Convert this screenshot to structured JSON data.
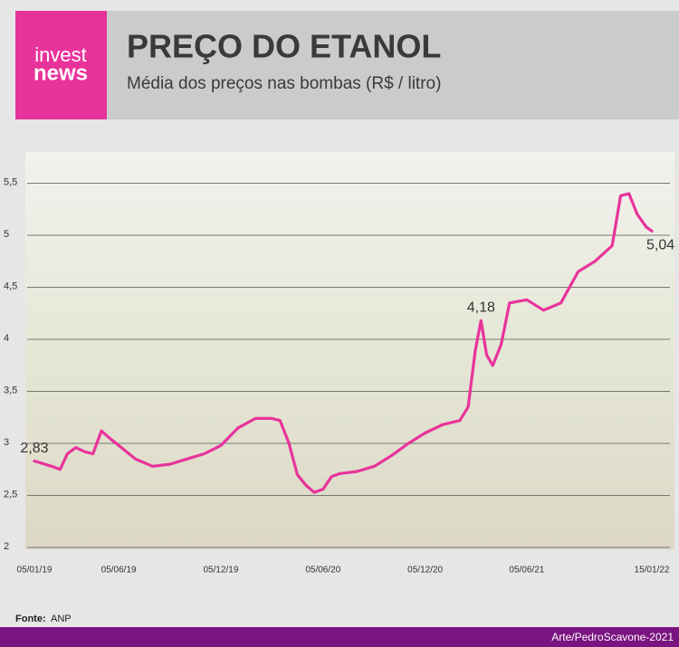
{
  "logo_top": "invest",
  "logo_bottom": "news",
  "chart_data": {
    "type": "line",
    "title": "PREÇO DO ETANOL",
    "subtitle": "Média dos preços nas bombas (R$ / litro)",
    "source_label": "Fonte:",
    "source": "ANP",
    "credit": "Arte/PedroScavone-2021",
    "x": [
      "05/01/19",
      "05/02/19",
      "20/02/19",
      "05/03/19",
      "20/03/19",
      "05/04/19",
      "20/04/19",
      "05/05/19",
      "20/05/19",
      "05/06/19",
      "05/07/19",
      "05/08/19",
      "05/09/19",
      "05/10/19",
      "05/11/19",
      "05/12/19",
      "05/01/20",
      "05/02/20",
      "05/03/20",
      "20/03/20",
      "05/04/20",
      "20/04/20",
      "05/05/20",
      "20/05/20",
      "05/06/20",
      "20/06/20",
      "05/07/20",
      "05/08/20",
      "05/09/20",
      "05/10/20",
      "05/11/20",
      "05/12/20",
      "05/01/21",
      "05/02/21",
      "20/02/21",
      "05/03/21",
      "15/03/21",
      "25/03/21",
      "05/04/21",
      "20/04/21",
      "05/05/21",
      "05/06/21",
      "05/07/21",
      "05/08/21",
      "05/09/21",
      "05/10/21",
      "05/11/21",
      "20/11/21",
      "05/12/21",
      "20/12/21",
      "05/01/22",
      "15/01/22"
    ],
    "series": [
      {
        "color": "#e8339b",
        "values": [
          2.83,
          2.78,
          2.75,
          2.9,
          2.96,
          2.92,
          2.9,
          3.12,
          3.05,
          2.98,
          2.85,
          2.78,
          2.8,
          2.85,
          2.9,
          2.98,
          3.15,
          3.24,
          3.24,
          3.22,
          3.0,
          2.7,
          2.6,
          2.53,
          2.56,
          2.68,
          2.71,
          2.73,
          2.78,
          2.88,
          3.0,
          3.1,
          3.18,
          3.22,
          3.35,
          3.9,
          4.18,
          3.85,
          3.75,
          3.95,
          4.35,
          4.38,
          4.28,
          4.35,
          4.65,
          4.75,
          4.9,
          5.38,
          5.4,
          5.2,
          5.08,
          5.04
        ],
        "value_labels": [
          "2,83",
          null,
          null,
          null,
          null,
          null,
          null,
          null,
          null,
          null,
          null,
          null,
          null,
          null,
          null,
          null,
          null,
          null,
          null,
          null,
          null,
          null,
          null,
          null,
          null,
          null,
          null,
          null,
          null,
          null,
          null,
          null,
          null,
          null,
          null,
          null,
          "4,18",
          null,
          null,
          null,
          null,
          null,
          null,
          null,
          null,
          null,
          null,
          null,
          null,
          null,
          null,
          "5,04"
        ]
      }
    ],
    "xlim": [
      "05/01/19",
      "15/01/22"
    ],
    "xticks": [
      "05/01/19",
      "05/06/19",
      "05/12/19",
      "05/06/20",
      "05/12/20",
      "05/06/21",
      "15/01/22"
    ],
    "ylim": [
      2,
      5.8
    ],
    "yticks": [
      2,
      {
        "value": 2.5,
        "label": "2,5"
      },
      3,
      {
        "value": 3.5,
        "label": "3,5"
      },
      4,
      {
        "value": 4.5,
        "label": "4,5"
      },
      5,
      {
        "value": 5.5,
        "label": "5,5"
      }
    ],
    "grid": true
  }
}
